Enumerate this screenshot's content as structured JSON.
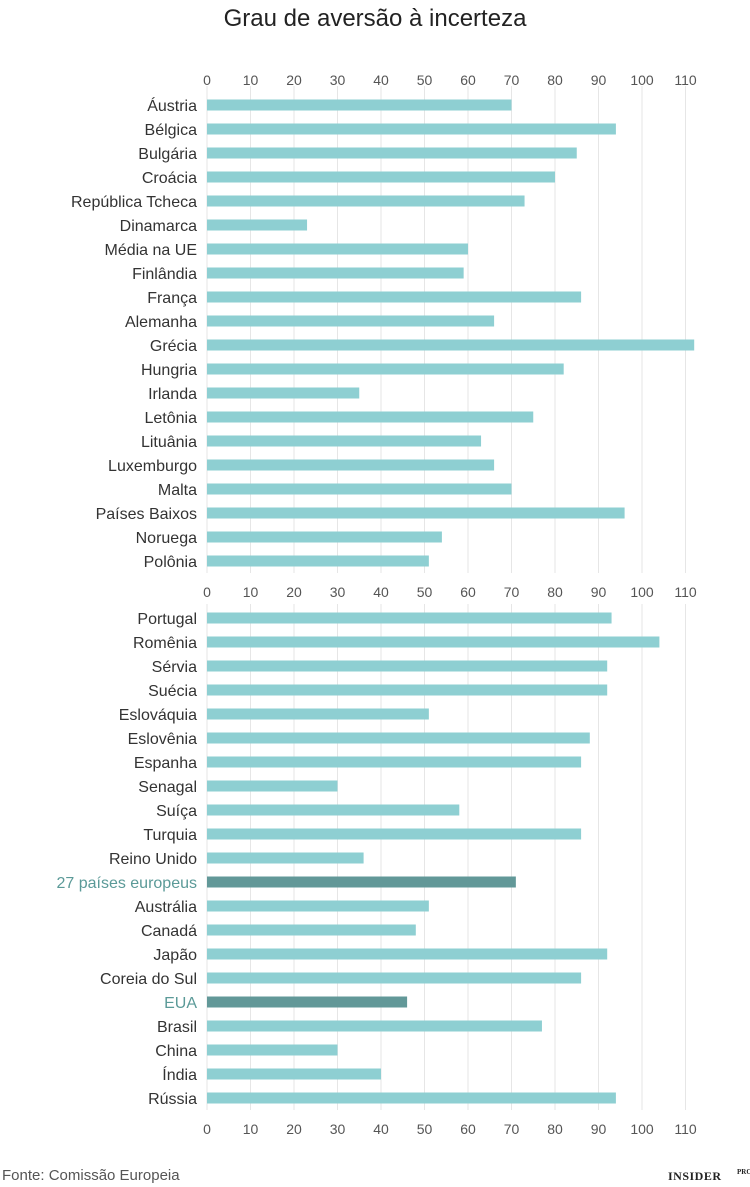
{
  "title": "Grau de aversão à incerteza",
  "source": "Fonte: Comissão Europeia",
  "logo": {
    "main": "INSIDER",
    "sup": "PRO"
  },
  "colors": {
    "bar": "#8ecfd2",
    "highlight_bar": "#629898",
    "highlight_text": "#5b9a98",
    "grid": "#e6e6e6"
  },
  "chart_data": [
    {
      "type": "bar",
      "orientation": "horizontal",
      "xlim": [
        0,
        112
      ],
      "ticks": [
        0,
        10,
        20,
        30,
        40,
        50,
        60,
        70,
        80,
        90,
        100,
        110
      ],
      "grid": true,
      "categories": [
        "Áustria",
        "Bélgica",
        "Bulgária",
        "Croácia",
        "República Tcheca",
        "Dinamarca",
        "Média na UE",
        "Finlândia",
        "França",
        "Alemanha",
        "Grécia",
        "Hungria",
        "Irlanda",
        "Letônia",
        "Lituânia",
        "Luxemburgo",
        "Malta",
        "Países Baixos",
        "Noruega",
        "Polônia"
      ],
      "values": [
        70,
        94,
        85,
        80,
        73,
        23,
        60,
        59,
        86,
        66,
        112,
        82,
        35,
        75,
        63,
        66,
        70,
        96,
        54,
        51
      ],
      "highlighted": []
    },
    {
      "type": "bar",
      "orientation": "horizontal",
      "xlim": [
        0,
        112
      ],
      "ticks": [
        0,
        10,
        20,
        30,
        40,
        50,
        60,
        70,
        80,
        90,
        100,
        110
      ],
      "grid": true,
      "categories": [
        "Portugal",
        "Romênia",
        "Sérvia",
        "Suécia",
        "Eslováquia",
        "Eslovênia",
        "Espanha",
        "Senagal",
        "Suíça",
        "Turquia",
        "Reino Unido",
        "27 países europeus",
        "Austrália",
        "Canadá",
        "Japão",
        "Coreia do Sul",
        "EUA",
        "Brasil",
        "China",
        "Índia",
        "Rússia"
      ],
      "values": [
        93,
        104,
        92,
        92,
        51,
        88,
        86,
        30,
        58,
        86,
        36,
        71,
        51,
        48,
        92,
        86,
        46,
        77,
        30,
        40,
        94
      ],
      "highlighted": [
        "27 países europeus",
        "EUA"
      ]
    }
  ]
}
